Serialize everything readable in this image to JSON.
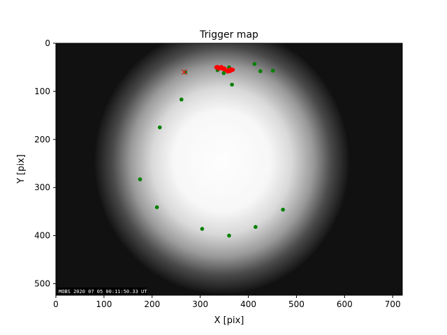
{
  "chart_data": {
    "type": "scatter",
    "title": "Trigger map",
    "xlabel": "X [pix]",
    "ylabel": "Y [pix]",
    "xlim": [
      0,
      720
    ],
    "ylim": [
      0,
      524
    ],
    "y_inverted": true,
    "grid": false,
    "background": {
      "kind": "image",
      "description_color": "grayscale all-sky frame",
      "bright_center": [
        345,
        245
      ],
      "stamp_text": "MOBS 2020 07 05 00:11:50.33 UT"
    },
    "xticks": [
      0,
      100,
      200,
      300,
      400,
      500,
      600,
      700
    ],
    "yticks": [
      0,
      100,
      200,
      300,
      400,
      500
    ],
    "series": [
      {
        "marker": "dot",
        "color": "#008000",
        "points": [
          [
            269,
            60
          ],
          [
            336,
            56
          ],
          [
            349,
            62
          ],
          [
            360,
            50
          ],
          [
            366,
            86
          ],
          [
            413,
            43
          ],
          [
            425,
            58
          ],
          [
            451,
            57
          ],
          [
            261,
            117
          ],
          [
            216,
            175
          ],
          [
            175,
            283
          ],
          [
            210,
            341
          ],
          [
            304,
            386
          ],
          [
            360,
            400
          ],
          [
            415,
            382
          ],
          [
            472,
            346
          ]
        ]
      },
      {
        "marker": "dot",
        "color": "#ff0000",
        "points": [
          [
            333,
            50
          ],
          [
            336,
            49
          ],
          [
            340,
            51
          ],
          [
            343,
            52
          ],
          [
            346,
            53
          ],
          [
            349,
            54
          ],
          [
            352,
            55
          ],
          [
            355,
            56
          ],
          [
            358,
            56
          ],
          [
            361,
            55
          ],
          [
            364,
            54
          ],
          [
            366,
            56
          ],
          [
            368,
            55
          ],
          [
            338,
            53
          ],
          [
            357,
            59
          ],
          [
            362,
            58
          ],
          [
            350,
            52
          ],
          [
            344,
            49
          ]
        ]
      },
      {
        "marker": "x",
        "color": "#d62728",
        "points": [
          [
            267,
            60
          ]
        ]
      }
    ]
  }
}
